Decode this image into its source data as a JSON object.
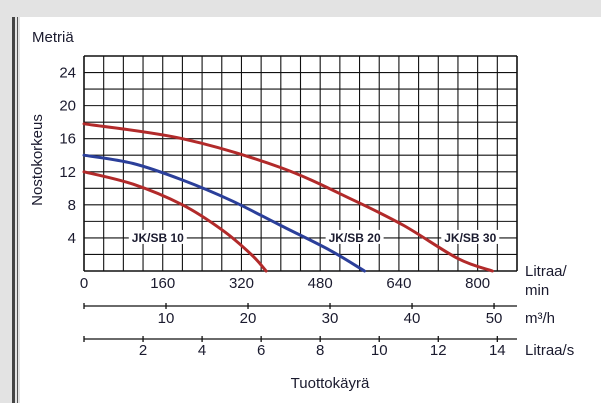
{
  "chart_data": {
    "type": "line",
    "title": "",
    "y_axis": {
      "unit_label": "Metriä",
      "label": "Nostokorkeus",
      "ticks": [
        4,
        8,
        12,
        16,
        20,
        24
      ],
      "range": [
        0,
        26
      ],
      "tick_color": "#1a3a6b"
    },
    "x_axis": {
      "title": "Tuottokäyrä",
      "range_lpm": [
        0,
        880
      ],
      "scales": [
        {
          "unit": "Litraa/\nmin",
          "ticks": [
            0,
            160,
            320,
            480,
            640,
            800
          ],
          "labels": [
            "0",
            "160",
            "320",
            "480",
            "640",
            "800"
          ],
          "factor_to_lpm": 1,
          "tick_color": "#1a3a6b"
        },
        {
          "unit": "m³/h",
          "ticks": [
            10,
            20,
            30,
            40,
            50
          ],
          "labels": [
            "10",
            "20",
            "30",
            "40",
            "50"
          ],
          "factor_to_lpm": 16.6667,
          "tick_color": "#1a3a6b"
        },
        {
          "unit": "Litraa/s",
          "ticks": [
            2,
            4,
            6,
            8,
            10,
            12,
            14
          ],
          "labels": [
            "2",
            "4",
            "6",
            "8",
            "10",
            "12",
            "14"
          ],
          "factor_to_lpm": 60,
          "tick_color": "#1a1a1a"
        }
      ]
    },
    "grid": {
      "on": true,
      "x_step_lpm": 40,
      "y_step": 2
    },
    "series": [
      {
        "name": "JK/SB 10",
        "color": "#b22a2a",
        "x": [
          0,
          100,
          200,
          280,
          340,
          370
        ],
        "y": [
          12,
          10.5,
          8,
          5,
          2,
          0
        ]
      },
      {
        "name": "JK/SB 20",
        "color": "#2b3f9a",
        "x": [
          0,
          100,
          200,
          300,
          400,
          500,
          570
        ],
        "y": [
          14,
          13,
          11,
          8.5,
          5.5,
          2.5,
          0
        ]
      },
      {
        "name": "JK/SB 30",
        "color": "#b22a2a",
        "x": [
          0,
          200,
          400,
          550,
          650,
          760,
          830
        ],
        "y": [
          17.8,
          16,
          12.5,
          8.5,
          5.5,
          1.5,
          0
        ]
      }
    ],
    "annotations": [
      {
        "text": "JK/SB 10",
        "x": 150,
        "y": 4
      },
      {
        "text": "JK/SB 20",
        "x": 550,
        "y": 4
      },
      {
        "text": "JK/SB 30",
        "x": 785,
        "y": 4
      }
    ]
  }
}
